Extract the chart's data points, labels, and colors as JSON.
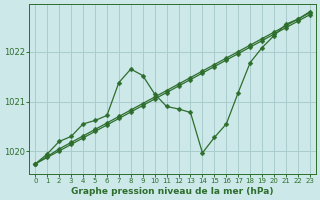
{
  "title": "Graphe pression niveau de la mer (hPa)",
  "bg_color": "#cce8e8",
  "grid_color": "#aacccc",
  "line_color": "#2d6e2d",
  "x_labels": [
    "0",
    "1",
    "2",
    "3",
    "4",
    "5",
    "6",
    "7",
    "8",
    "9",
    "10",
    "11",
    "12",
    "13",
    "14",
    "15",
    "16",
    "17",
    "18",
    "19",
    "20",
    "21",
    "22",
    "23"
  ],
  "x_values": [
    0,
    1,
    2,
    3,
    4,
    5,
    6,
    7,
    8,
    9,
    10,
    11,
    12,
    13,
    14,
    15,
    16,
    17,
    18,
    19,
    20,
    21,
    22,
    23
  ],
  "line_smooth1": [
    1019.75,
    1019.88,
    1020.01,
    1020.14,
    1020.27,
    1020.4,
    1020.53,
    1020.66,
    1020.79,
    1020.92,
    1021.05,
    1021.18,
    1021.31,
    1021.44,
    1021.57,
    1021.7,
    1021.83,
    1021.96,
    1022.09,
    1022.22,
    1022.35,
    1022.48,
    1022.61,
    1022.74
  ],
  "line_smooth2": [
    1019.75,
    1019.9,
    1020.05,
    1020.18,
    1020.31,
    1020.44,
    1020.57,
    1020.7,
    1020.83,
    1020.96,
    1021.09,
    1021.22,
    1021.35,
    1021.48,
    1021.61,
    1021.74,
    1021.87,
    1022.0,
    1022.13,
    1022.26,
    1022.39,
    1022.52,
    1022.65,
    1022.78
  ],
  "line_zigzag": [
    1019.75,
    1019.95,
    1020.2,
    1020.3,
    1020.55,
    1020.62,
    1020.72,
    1021.38,
    1021.65,
    1021.52,
    1021.15,
    1020.9,
    1020.85,
    1020.78,
    1019.97,
    1020.28,
    1020.55,
    1021.18,
    1021.78,
    1022.08,
    1022.32,
    1022.55,
    1022.65,
    1022.8
  ],
  "ylim_min": 1019.55,
  "ylim_max": 1022.95,
  "yticks": [
    1020,
    1021,
    1022
  ]
}
